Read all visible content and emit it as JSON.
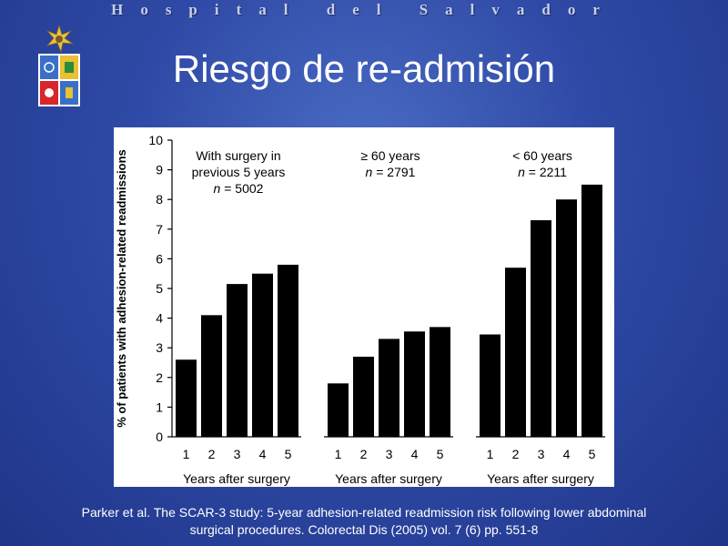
{
  "header": {
    "text": "Hospital del Salvador"
  },
  "slide": {
    "title": "Riesgo de re-admisión"
  },
  "citation": {
    "line1": "Parker et al. The SCAR-3 study: 5-year adhesion-related readmission risk following lower abdominal",
    "line2": "surgical procedures. Colorectal Dis (2005) vol. 7 (6) pp. 551-8"
  },
  "colors": {
    "bar": "#000000",
    "background": "#2f4aa6",
    "panel": "#ffffff"
  },
  "chart_data": {
    "type": "bar",
    "ylabel": "% of patients with adhesion-related readmissions",
    "ylim": [
      0,
      10
    ],
    "yticks": [
      0,
      1,
      2,
      3,
      4,
      5,
      6,
      7,
      8,
      9,
      10
    ],
    "grid": false,
    "groups": [
      {
        "label_lines": [
          "With surgery in",
          "previous 5 years"
        ],
        "n_label": "n = 5002",
        "categories": [
          "1",
          "2",
          "3",
          "4",
          "5"
        ],
        "values": [
          2.6,
          4.1,
          5.15,
          5.5,
          5.8
        ],
        "xlabel": "Years after surgery"
      },
      {
        "label_lines": [
          "≥ 60 years"
        ],
        "n_label": "n = 2791",
        "categories": [
          "1",
          "2",
          "3",
          "4",
          "5"
        ],
        "values": [
          1.8,
          2.7,
          3.3,
          3.55,
          3.7
        ],
        "xlabel": "Years after surgery"
      },
      {
        "label_lines": [
          "< 60 years"
        ],
        "n_label": "n = 2211",
        "categories": [
          "1",
          "2",
          "3",
          "4",
          "5"
        ],
        "values": [
          3.45,
          5.7,
          7.3,
          8.0,
          8.5
        ],
        "xlabel": "Years after surgery"
      }
    ]
  }
}
